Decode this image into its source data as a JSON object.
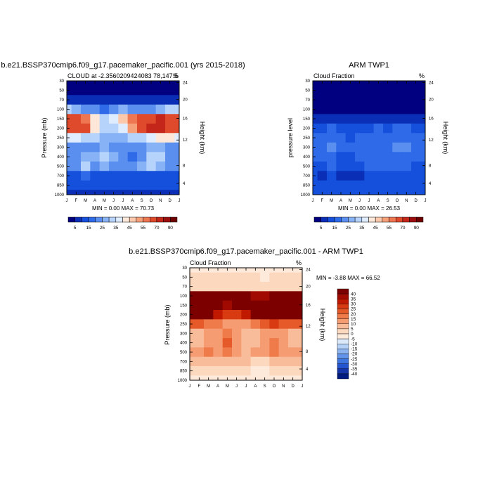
{
  "chart_data": [
    {
      "type": "heatmap",
      "title": "b.e21.BSSP370cmip6.f09_g17.pacemaker_pacific.001 (yrs 2015-2018)",
      "subtitle_left": "CLOUD at -2.3560209424083 78,147.5",
      "subtitle_right": "%",
      "ylabel": "Pressure (mb)",
      "y2label": "Height (km)",
      "x_ticks": [
        "J",
        "F",
        "M",
        "A",
        "M",
        "J",
        "J",
        "A",
        "S",
        "O",
        "N",
        "D",
        "J"
      ],
      "y_ticks": [
        "30",
        "50",
        "70",
        "100",
        "150",
        "200",
        "250",
        "300",
        "400",
        "500",
        "700",
        "850",
        "1000"
      ],
      "y2_ticks": [
        "24",
        "20",
        "16",
        "12",
        "8",
        "4"
      ],
      "stats": "MIN =   0.00 MAX =  70.73",
      "colorbar_labels": [
        "5",
        "15",
        "25",
        "35",
        "45",
        "55",
        "70",
        "90"
      ],
      "colorbar_colors": [
        "#000080",
        "#0a2fb6",
        "#1450dc",
        "#2f6be8",
        "#5a8ff0",
        "#88b2f6",
        "#b6d3fb",
        "#e0ecff",
        "#fde7d8",
        "#fbc8ab",
        "#f6a07a",
        "#ee7650",
        "#e04a2c",
        "#c4261a",
        "#9a0f0d",
        "#6e0000"
      ],
      "levels": [
        30,
        50,
        70,
        100,
        150,
        200,
        250,
        300,
        400,
        500,
        700,
        850,
        1000
      ],
      "months": [
        "J",
        "F",
        "M",
        "A",
        "M",
        "J",
        "J",
        "A",
        "S",
        "O",
        "N",
        "D",
        "J"
      ],
      "values": [
        [
          0,
          0,
          0,
          0,
          0,
          0,
          0,
          0,
          0,
          0,
          0,
          0,
          0
        ],
        [
          2,
          2,
          2,
          2,
          2,
          2,
          2,
          2,
          2,
          2,
          2,
          2,
          2
        ],
        [
          6,
          6,
          6,
          6,
          6,
          6,
          6,
          6,
          6,
          6,
          6,
          6,
          6
        ],
        [
          30,
          28,
          24,
          20,
          18,
          22,
          26,
          24,
          20,
          20,
          26,
          32,
          30
        ],
        [
          62,
          62,
          58,
          42,
          34,
          38,
          48,
          55,
          64,
          68,
          70,
          66,
          62
        ],
        [
          66,
          66,
          60,
          42,
          32,
          30,
          38,
          52,
          62,
          70,
          70,
          68,
          66
        ],
        [
          38,
          36,
          32,
          30,
          26,
          26,
          28,
          30,
          34,
          38,
          40,
          40,
          38
        ],
        [
          22,
          22,
          24,
          24,
          26,
          24,
          22,
          22,
          24,
          26,
          26,
          24,
          22
        ],
        [
          20,
          22,
          28,
          26,
          32,
          26,
          20,
          18,
          24,
          30,
          30,
          22,
          20
        ],
        [
          22,
          24,
          30,
          24,
          28,
          24,
          22,
          24,
          26,
          30,
          28,
          24,
          22
        ],
        [
          14,
          14,
          16,
          14,
          14,
          14,
          14,
          14,
          14,
          14,
          14,
          14,
          14
        ],
        [
          10,
          12,
          12,
          12,
          12,
          12,
          12,
          12,
          12,
          12,
          12,
          12,
          10
        ],
        [
          8,
          8,
          8,
          8,
          8,
          8,
          8,
          8,
          8,
          8,
          8,
          8,
          8
        ]
      ]
    },
    {
      "type": "heatmap",
      "title": "ARM TWP1",
      "subtitle_left": "Cloud Fraction",
      "subtitle_right": "%",
      "ylabel": "pressure level",
      "y2label": "Height (km)",
      "x_ticks": [
        "J",
        "F",
        "M",
        "A",
        "M",
        "J",
        "J",
        "A",
        "S",
        "O",
        "N",
        "D",
        "J"
      ],
      "y_ticks": [
        "30",
        "50",
        "70",
        "100",
        "150",
        "200",
        "250",
        "300",
        "400",
        "500",
        "700",
        "850",
        "1000"
      ],
      "y2_ticks": [
        "24",
        "20",
        "16",
        "12",
        "8",
        "4"
      ],
      "stats": "MIN =   0.00 MAX =  26.53",
      "colorbar_labels": [
        "5",
        "15",
        "25",
        "35",
        "45",
        "55",
        "70",
        "90"
      ],
      "colorbar_colors": [
        "#000080",
        "#0a2fb6",
        "#1450dc",
        "#2f6be8",
        "#5a8ff0",
        "#88b2f6",
        "#b6d3fb",
        "#e0ecff",
        "#fde7d8",
        "#fbc8ab",
        "#f6a07a",
        "#ee7650",
        "#e04a2c",
        "#c4261a",
        "#9a0f0d",
        "#6e0000"
      ],
      "levels": [
        30,
        50,
        70,
        100,
        150,
        200,
        250,
        300,
        400,
        500,
        700,
        850,
        1000
      ],
      "months": [
        "J",
        "F",
        "M",
        "A",
        "M",
        "J",
        "J",
        "A",
        "S",
        "O",
        "N",
        "D",
        "J"
      ],
      "values": [
        [
          0,
          0,
          0,
          0,
          0,
          0,
          0,
          0,
          0,
          0,
          0,
          0,
          0
        ],
        [
          0,
          0,
          0,
          0,
          0,
          0,
          0,
          0,
          0,
          0,
          0,
          0,
          0
        ],
        [
          1,
          1,
          1,
          1,
          1,
          1,
          1,
          1,
          1,
          1,
          1,
          1,
          1
        ],
        [
          2,
          2,
          2,
          2,
          2,
          2,
          2,
          2,
          2,
          2,
          2,
          2,
          2
        ],
        [
          6,
          6,
          8,
          8,
          6,
          5,
          6,
          6,
          6,
          7,
          7,
          6,
          6
        ],
        [
          14,
          14,
          16,
          14,
          12,
          13,
          14,
          15,
          14,
          15,
          15,
          14,
          14
        ],
        [
          17,
          17,
          18,
          16,
          14,
          15,
          17,
          18,
          16,
          17,
          17,
          16,
          17
        ],
        [
          18,
          18,
          20,
          18,
          16,
          17,
          19,
          18,
          18,
          20,
          20,
          18,
          18
        ],
        [
          16,
          16,
          17,
          14,
          12,
          15,
          17,
          16,
          18,
          19,
          19,
          16,
          16
        ],
        [
          14,
          14,
          15,
          12,
          10,
          13,
          15,
          15,
          16,
          17,
          16,
          14,
          14
        ],
        [
          10,
          9,
          11,
          8,
          8,
          9,
          10,
          10,
          10,
          11,
          10,
          10,
          10
        ],
        [
          13,
          12,
          12,
          12,
          12,
          12,
          12,
          12,
          12,
          12,
          12,
          13,
          13
        ],
        [
          14,
          14,
          14,
          14,
          14,
          14,
          14,
          14,
          14,
          14,
          14,
          14,
          14
        ]
      ]
    },
    {
      "type": "heatmap",
      "title": "b.e21.BSSP370cmip6.f09_g17.pacemaker_pacific.001 - ARM TWP1",
      "subtitle_left": "Cloud Fraction",
      "subtitle_right": "%",
      "ylabel": "Pressure (mb)",
      "y2label": "Height (km)",
      "x_ticks": [
        "J",
        "F",
        "M",
        "A",
        "M",
        "J",
        "J",
        "A",
        "S",
        "O",
        "N",
        "D",
        "J"
      ],
      "y_ticks": [
        "30",
        "50",
        "70",
        "100",
        "150",
        "200",
        "250",
        "300",
        "400",
        "500",
        "700",
        "850",
        "1000"
      ],
      "y2_ticks": [
        "24",
        "20",
        "16",
        "12",
        "8",
        "4"
      ],
      "stats": "MIN =  -3.88 MAX =  66.52",
      "colorbar_labels": [
        "40",
        "35",
        "30",
        "25",
        "20",
        "15",
        "10",
        "5",
        "0",
        "-5",
        "-10",
        "-15",
        "-20",
        "-25",
        "-30",
        "-35",
        "-40"
      ],
      "colorbar_colors": [
        "#7d0000",
        "#a00a00",
        "#c11800",
        "#d83a12",
        "#e65a2a",
        "#ef7a4a",
        "#f59c72",
        "#f9bc9a",
        "#fcd8bf",
        "#feeadb",
        "#dbe9fb",
        "#b4d0f7",
        "#8db4f1",
        "#6295ea",
        "#3e75e2",
        "#2453d0",
        "#1634a9",
        "#001a80"
      ],
      "levels": [
        30,
        50,
        70,
        100,
        150,
        200,
        250,
        300,
        400,
        500,
        700,
        850,
        1000
      ],
      "months": [
        "J",
        "F",
        "M",
        "A",
        "M",
        "J",
        "J",
        "A",
        "S",
        "O",
        "N",
        "D",
        "J"
      ],
      "values": [
        [
          -2,
          -2,
          -2,
          -2,
          -2,
          -2,
          -2,
          -2,
          -2,
          -2,
          -2,
          -2,
          -2
        ],
        [
          1,
          1,
          1,
          1,
          1,
          1,
          1,
          1,
          -1,
          1,
          1,
          1,
          1
        ],
        [
          3,
          3,
          3,
          3,
          3,
          3,
          3,
          3,
          3,
          3,
          3,
          3,
          3
        ],
        [
          46,
          46,
          44,
          40,
          40,
          44,
          44,
          38,
          36,
          40,
          46,
          48,
          46
        ],
        [
          56,
          56,
          52,
          42,
          36,
          40,
          44,
          50,
          58,
          60,
          62,
          60,
          56
        ],
        [
          54,
          54,
          48,
          34,
          28,
          28,
          34,
          44,
          50,
          56,
          58,
          56,
          54
        ],
        [
          22,
          20,
          18,
          16,
          12,
          12,
          12,
          18,
          22,
          26,
          24,
          22,
          22
        ],
        [
          6,
          8,
          12,
          14,
          16,
          12,
          6,
          8,
          10,
          14,
          12,
          8,
          6
        ],
        [
          6,
          8,
          12,
          14,
          20,
          14,
          6,
          6,
          12,
          16,
          14,
          8,
          6
        ],
        [
          10,
          12,
          16,
          12,
          18,
          14,
          8,
          10,
          14,
          18,
          14,
          10,
          10
        ],
        [
          6,
          6,
          6,
          6,
          6,
          6,
          6,
          2,
          2,
          6,
          6,
          6,
          6
        ],
        [
          1,
          1,
          1,
          1,
          1,
          1,
          1,
          -2,
          -2,
          1,
          1,
          1,
          1
        ],
        [
          -1,
          -1,
          -1,
          -1,
          -1,
          -1,
          -1,
          -1,
          -1,
          -1,
          -1,
          -1,
          -1
        ]
      ]
    }
  ]
}
